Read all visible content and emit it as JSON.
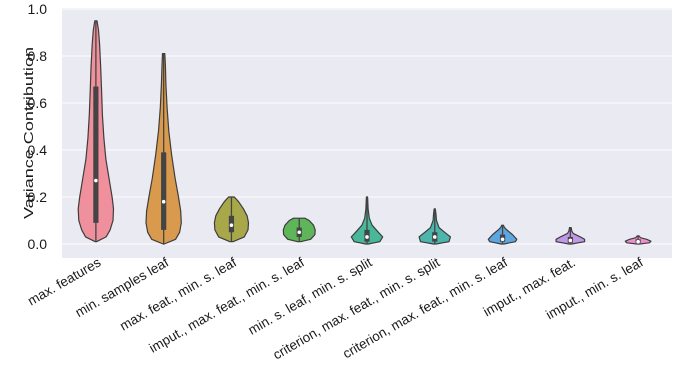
{
  "chart_data": {
    "type": "violin",
    "title": "",
    "xlabel": "",
    "ylabel": "Variance Contribution",
    "ylim": [
      -0.02,
      1.0
    ],
    "yticks": [
      "0.0",
      "0.2",
      "0.4",
      "0.6",
      "0.8",
      "1.0"
    ],
    "ytick_values": [
      0.0,
      0.2,
      0.4,
      0.6,
      0.8,
      1.0
    ],
    "grid": true,
    "categories": [
      "max. features",
      "min. samples leaf",
      "max. feat., min. s. leaf",
      "imput., max. feat., min. s. leaf",
      "min. s. leaf, min. s. split",
      "criterion, max. feat., min. s. split",
      "criterion, max. feat., min. s. leaf",
      "imput., max. feat.",
      "imput., min. s. leaf"
    ],
    "colors": [
      "#f0909c",
      "#d99a4e",
      "#a8a84a",
      "#5fb55a",
      "#49b79a",
      "#4cb5ac",
      "#5ea6e0",
      "#c197e6",
      "#f08fcf"
    ],
    "series": [
      {
        "min": 0.01,
        "max": 0.95,
        "q1": 0.09,
        "median": 0.27,
        "q3": 0.67,
        "profile": [
          [
            0.01,
            0.02
          ],
          [
            0.03,
            0.36
          ],
          [
            0.06,
            0.5
          ],
          [
            0.1,
            0.6
          ],
          [
            0.15,
            0.62
          ],
          [
            0.2,
            0.57
          ],
          [
            0.28,
            0.46
          ],
          [
            0.36,
            0.35
          ],
          [
            0.45,
            0.28
          ],
          [
            0.55,
            0.23
          ],
          [
            0.65,
            0.2
          ],
          [
            0.75,
            0.17
          ],
          [
            0.85,
            0.13
          ],
          [
            0.91,
            0.09
          ],
          [
            0.95,
            0.04
          ]
        ]
      },
      {
        "min": 0.0,
        "max": 0.81,
        "q1": 0.06,
        "median": 0.18,
        "q3": 0.39,
        "profile": [
          [
            0.0,
            0.02
          ],
          [
            0.02,
            0.42
          ],
          [
            0.05,
            0.56
          ],
          [
            0.09,
            0.62
          ],
          [
            0.14,
            0.6
          ],
          [
            0.2,
            0.52
          ],
          [
            0.28,
            0.4
          ],
          [
            0.38,
            0.28
          ],
          [
            0.48,
            0.18
          ],
          [
            0.58,
            0.12
          ],
          [
            0.68,
            0.08
          ],
          [
            0.76,
            0.06
          ],
          [
            0.81,
            0.04
          ]
        ]
      },
      {
        "min": 0.01,
        "max": 0.2,
        "q1": 0.05,
        "median": 0.08,
        "q3": 0.12,
        "profile": [
          [
            0.01,
            0.05
          ],
          [
            0.03,
            0.45
          ],
          [
            0.06,
            0.58
          ],
          [
            0.09,
            0.6
          ],
          [
            0.12,
            0.55
          ],
          [
            0.15,
            0.42
          ],
          [
            0.18,
            0.25
          ],
          [
            0.2,
            0.1
          ]
        ]
      },
      {
        "min": 0.01,
        "max": 0.11,
        "q1": 0.03,
        "median": 0.05,
        "q3": 0.07,
        "profile": [
          [
            0.01,
            0.05
          ],
          [
            0.02,
            0.4
          ],
          [
            0.04,
            0.55
          ],
          [
            0.06,
            0.56
          ],
          [
            0.08,
            0.5
          ],
          [
            0.1,
            0.35
          ],
          [
            0.11,
            0.2
          ]
        ]
      },
      {
        "min": 0.0,
        "max": 0.2,
        "q1": 0.01,
        "median": 0.03,
        "q3": 0.06,
        "profile": [
          [
            0.0,
            0.05
          ],
          [
            0.01,
            0.45
          ],
          [
            0.03,
            0.55
          ],
          [
            0.05,
            0.4
          ],
          [
            0.08,
            0.18
          ],
          [
            0.11,
            0.08
          ],
          [
            0.15,
            0.04
          ],
          [
            0.2,
            0.02
          ]
        ]
      },
      {
        "min": 0.0,
        "max": 0.15,
        "q1": 0.01,
        "median": 0.03,
        "q3": 0.05,
        "profile": [
          [
            0.0,
            0.05
          ],
          [
            0.01,
            0.5
          ],
          [
            0.03,
            0.55
          ],
          [
            0.05,
            0.35
          ],
          [
            0.07,
            0.15
          ],
          [
            0.1,
            0.06
          ],
          [
            0.13,
            0.04
          ],
          [
            0.15,
            0.02
          ]
        ]
      },
      {
        "min": 0.0,
        "max": 0.08,
        "q1": 0.01,
        "median": 0.02,
        "q3": 0.04,
        "profile": [
          [
            0.0,
            0.05
          ],
          [
            0.01,
            0.45
          ],
          [
            0.02,
            0.5
          ],
          [
            0.04,
            0.35
          ],
          [
            0.06,
            0.15
          ],
          [
            0.07,
            0.07
          ],
          [
            0.08,
            0.03
          ]
        ]
      },
      {
        "min": 0.0,
        "max": 0.07,
        "q1": 0.005,
        "median": 0.015,
        "q3": 0.03,
        "profile": [
          [
            0.0,
            0.05
          ],
          [
            0.01,
            0.5
          ],
          [
            0.02,
            0.5
          ],
          [
            0.03,
            0.35
          ],
          [
            0.045,
            0.1
          ],
          [
            0.055,
            0.05
          ],
          [
            0.07,
            0.03
          ]
        ]
      },
      {
        "min": 0.0,
        "max": 0.035,
        "q1": 0.005,
        "median": 0.01,
        "q3": 0.02,
        "profile": [
          [
            0.0,
            0.05
          ],
          [
            0.005,
            0.4
          ],
          [
            0.012,
            0.45
          ],
          [
            0.02,
            0.3
          ],
          [
            0.027,
            0.08
          ],
          [
            0.035,
            0.03
          ]
        ]
      }
    ]
  }
}
